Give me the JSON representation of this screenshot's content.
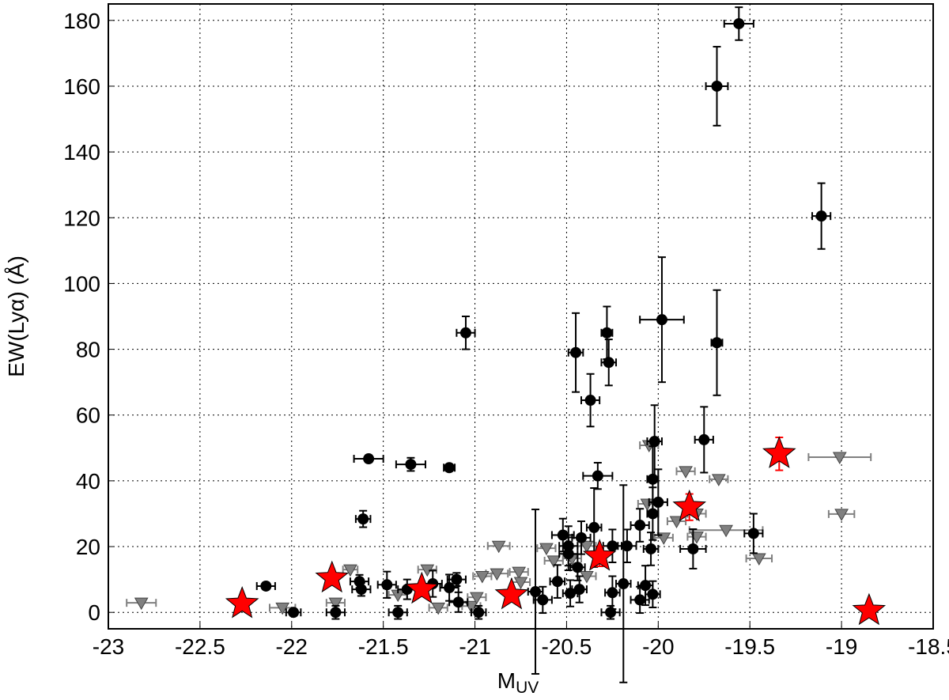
{
  "chart_data": {
    "type": "scatter",
    "xlabel": "M",
    "xlabel_sub": "UV",
    "ylabel": "EW(Lyα) (Å)",
    "xlim": [
      -23,
      -18.5
    ],
    "ylim": [
      -5,
      185
    ],
    "xticks": [
      -23,
      -22.5,
      -22,
      -21.5,
      -21,
      -20.5,
      -20,
      -19.5,
      -19,
      -18.5
    ],
    "yticks": [
      0,
      20,
      40,
      60,
      80,
      100,
      120,
      140,
      160,
      180
    ],
    "grid": true,
    "series": [
      {
        "marker": "triangle",
        "color": "#808080",
        "errcolor": "#808080",
        "x": [
          -22.82,
          -22.05,
          -21.68,
          -20.87,
          -20.88,
          -20.96,
          -20.76,
          -20.61,
          -20.57,
          -20.06,
          -20.05,
          -19.85,
          -19.67,
          -19.63,
          -19.9,
          -19.45,
          -19.01,
          -19.0,
          -19.79,
          -19.97,
          -21.42,
          -21.2,
          -21.02,
          -21.76,
          -20.39,
          -20.47,
          -21.26,
          -20.99,
          -20.75,
          -20.39,
          -19.79
        ],
        "values": [
          2.9,
          1.4,
          13,
          20.2,
          11.8,
          11,
          12.3,
          19.5,
          15.7,
          33,
          50.8,
          42.9,
          40.5,
          25,
          27.7,
          16.4,
          47.2,
          29.9,
          30,
          22.7,
          5.3,
          1.4,
          1.9,
          2.9,
          20.2,
          16.4,
          13,
          4.6,
          9.2,
          11,
          23
        ],
        "xerr": [
          0.08,
          0.07,
          0.04,
          0.06,
          0.06,
          0.05,
          0.05,
          0.05,
          0.05,
          0.05,
          0.05,
          0.05,
          0.05,
          0.2,
          0.05,
          0.07,
          0.17,
          0.07,
          0.05,
          0.05,
          0.05,
          0.05,
          0.05,
          0.05,
          0.05,
          0.05,
          0.05,
          0.05,
          0.05,
          0.05,
          0.05
        ]
      },
      {
        "marker": "circle",
        "color": "#000000",
        "errcolor": "#000000",
        "x": [
          -19.56,
          -19.68,
          -19.11,
          -21.05,
          -19.98,
          -19.68,
          -20.28,
          -20.27,
          -20.45,
          -20.37,
          -19.75,
          -20.02,
          -21.58,
          -21.35,
          -21.14,
          -20.33,
          -20.03,
          -20.0,
          -20.03,
          -21.61,
          -19.48,
          -20.1,
          -19.81,
          -20.04,
          -20.35,
          -20.52,
          -20.42,
          -20.49,
          -20.49,
          -20.17,
          -20.25,
          -20.44,
          -20.55,
          -20.19,
          -20.07,
          -20.67,
          -20.43,
          -20.63,
          -20.25,
          -20.1,
          -20.03,
          -20.26,
          -21.1,
          -21.09,
          -20.98,
          -21.48,
          -21.37,
          -21.42,
          -21.63,
          -21.62,
          -21.76,
          -21.99,
          -22.14,
          -21.14,
          -21.23,
          -20.48
        ],
        "values": [
          179,
          160,
          120.5,
          85,
          89,
          82,
          85,
          76,
          79,
          64.5,
          52.5,
          52,
          46.7,
          45,
          44,
          41.5,
          40.5,
          33.5,
          30,
          28.4,
          24,
          26.5,
          19.3,
          19.3,
          25.8,
          23.5,
          22.7,
          20.2,
          17.8,
          20.2,
          20.2,
          13.7,
          9.4,
          8.7,
          8.2,
          6.3,
          7,
          3.8,
          6,
          3.8,
          5.5,
          0,
          10,
          3.1,
          0,
          8.4,
          7,
          0,
          9.4,
          7,
          0,
          0,
          8,
          7.5,
          8.7,
          5.8
        ],
        "xerr": [
          0.08,
          0.06,
          0.05,
          0.05,
          0.12,
          0.03,
          0.03,
          0.04,
          0.04,
          0.05,
          0.05,
          0.04,
          0.08,
          0.08,
          0.03,
          0.08,
          0.03,
          0.05,
          0.03,
          0.04,
          0.05,
          0.05,
          0.07,
          0.04,
          0.04,
          0.06,
          0.05,
          0.05,
          0.05,
          0.05,
          0.05,
          0.04,
          0.04,
          0.04,
          0.04,
          0.04,
          0.04,
          0.05,
          0.04,
          0.05,
          0.04,
          0.05,
          0.05,
          0.05,
          0.04,
          0.05,
          0.05,
          0.05,
          0.05,
          0.05,
          0.05,
          0.04,
          0.05,
          0.05,
          0.05,
          0.04
        ],
        "yerr": [
          5,
          12,
          10,
          5,
          19,
          16,
          8,
          7,
          12,
          8,
          10,
          11,
          1,
          2,
          1,
          4,
          10,
          10,
          8,
          2.5,
          6,
          5,
          6,
          5,
          12,
          5,
          5,
          6,
          5,
          5,
          5,
          4,
          5,
          30,
          6,
          25,
          4,
          4,
          5,
          4,
          4,
          2,
          2,
          3,
          2,
          4,
          3,
          2,
          2,
          2,
          2,
          1,
          1,
          4,
          4,
          4
        ]
      },
      {
        "marker": "star",
        "color": "#ff0000",
        "errcolor": "#ff0000",
        "x": [
          -22.27,
          -21.78,
          -21.29,
          -20.8,
          -20.32,
          -19.83,
          -19.34,
          -18.85
        ],
        "values": [
          2.6,
          10.4,
          7,
          5.3,
          17,
          32,
          48.2,
          0.5
        ],
        "yerr": [
          1,
          1,
          1,
          1,
          3,
          4,
          5,
          1
        ]
      }
    ]
  }
}
